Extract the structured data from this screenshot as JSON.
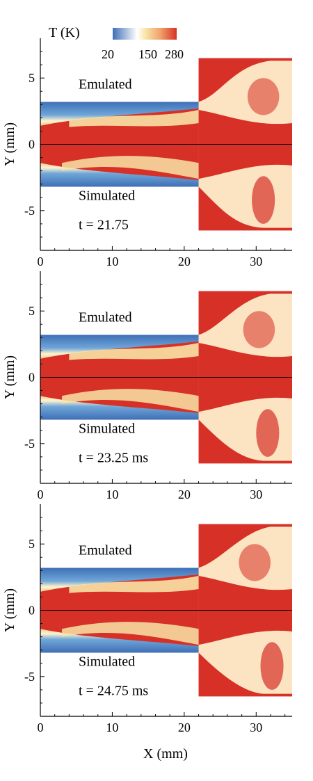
{
  "colorbar": {
    "title": "T (K)",
    "ticks": [
      "20",
      "150",
      "280"
    ],
    "colors": [
      "#3f6fb6",
      "#ffffff",
      "#f8e3a6",
      "#f0a06a",
      "#d73027"
    ]
  },
  "xlabel": "X (mm)",
  "ylabel": "Y (mm)",
  "panels": [
    {
      "emulated_label": "Emulated",
      "simulated_label": "Simulated",
      "time_label": "t = 21.75"
    },
    {
      "emulated_label": "Emulated",
      "simulated_label": "Simulated",
      "time_label": "t = 23.25 ms"
    },
    {
      "emulated_label": "Emulated",
      "simulated_label": "Simulated",
      "time_label": "t = 24.75 ms"
    }
  ],
  "chart_data": {
    "type": "heatmap",
    "xlabel": "X (mm)",
    "ylabel": "Y (mm)",
    "xlim": [
      0,
      35
    ],
    "ylim": [
      -8,
      8
    ],
    "xticks": [
      0,
      10,
      20,
      30
    ],
    "yticks": [
      -5,
      0,
      5
    ],
    "colorbar_range": [
      20,
      280
    ],
    "colorbar_ticks": [
      20,
      150,
      280
    ],
    "channel_half_height": 3.2,
    "channel_end_x": 22,
    "chamber_half_height": 6.5,
    "chamber_end_x": 35,
    "panels": [
      {
        "time_label": "t = 21.75"
      },
      {
        "time_label": "t = 23.25 ms"
      },
      {
        "time_label": "t = 24.75 ms"
      }
    ]
  },
  "colors": {
    "hot": "#d73027",
    "cold": "#3f6fb6",
    "mid": "#f8e3a6",
    "light": "#fff4cf"
  }
}
